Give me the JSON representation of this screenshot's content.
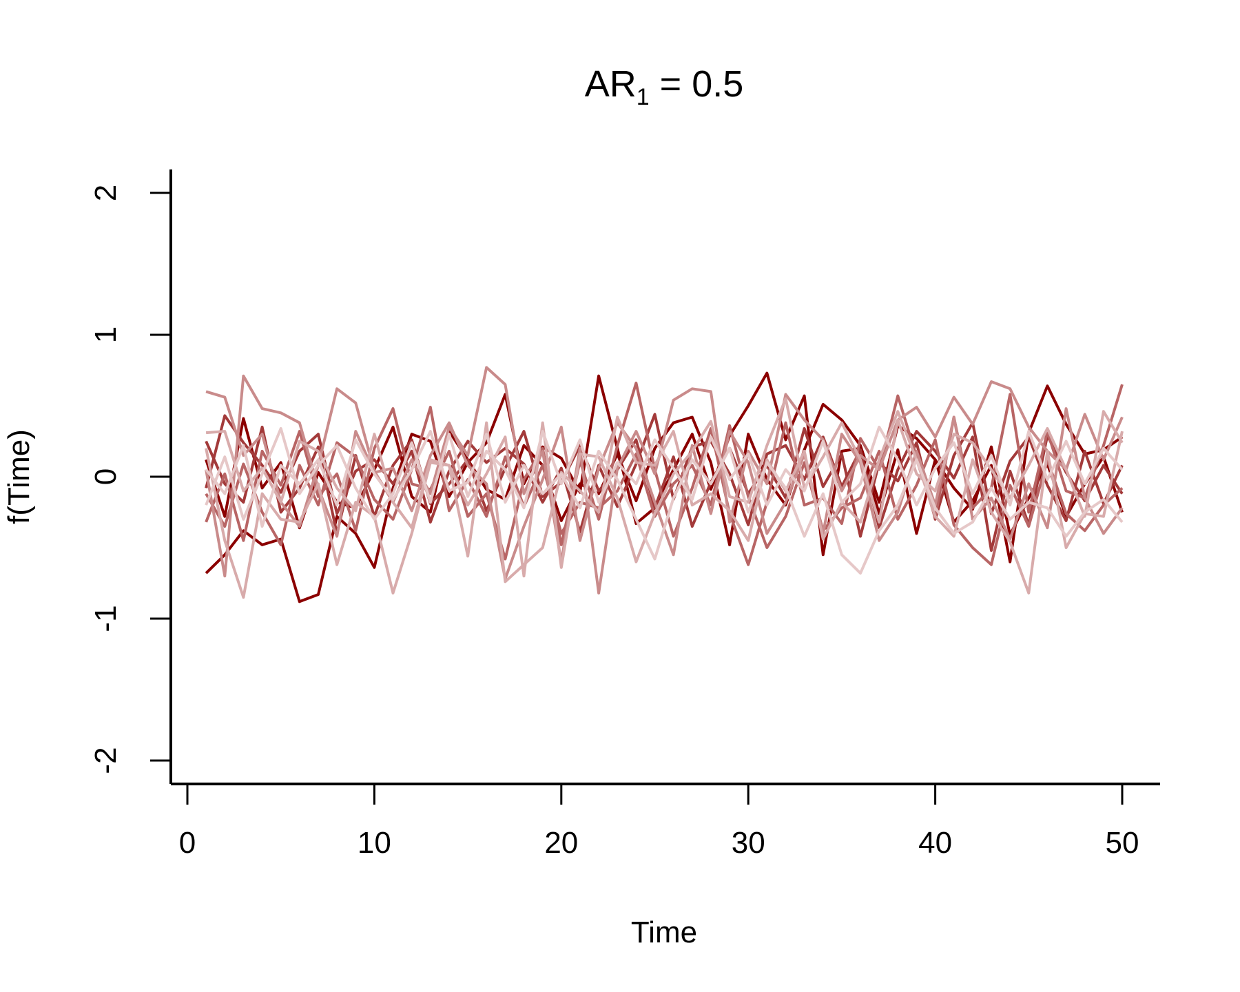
{
  "chart_data": {
    "type": "line",
    "title": {
      "main": "AR",
      "subscript": "1",
      "rest": " = 0.5"
    },
    "xlabel": "Time",
    "ylabel": "f(Time)",
    "xlim": [
      -1,
      52
    ],
    "ylim": [
      -2.15,
      2.15
    ],
    "xticks": [
      "0",
      "10",
      "20",
      "30",
      "40",
      "50"
    ],
    "yticks": [
      "-2",
      "-1",
      "0",
      "1",
      "2"
    ],
    "grid": false,
    "legend": "none",
    "colors": [
      "#8b0000",
      "#a33a3a",
      "#b86565",
      "#c98b8b",
      "#d8abab",
      "#e6c8c8"
    ],
    "series": [
      {
        "color": "#8b0000",
        "values": [
          -0.68,
          -0.55,
          -0.38,
          -0.48,
          -0.44,
          -0.88,
          -0.83,
          -0.28,
          -0.4,
          -0.64,
          -0.08,
          0.3,
          0.25,
          -0.14,
          0.1,
          0.24,
          0.58,
          -0.05,
          0.21,
          0.13,
          -0.11,
          0.71,
          0.2,
          -0.33,
          -0.22,
          0.05,
          0.3,
          -0.09,
          0.29,
          0.5,
          0.73,
          0.26,
          0.57,
          -0.55,
          0.18,
          0.2,
          -0.26,
          0.19,
          -0.4,
          0.12,
          -0.32,
          -0.17,
          0.08,
          -0.6,
          0.31,
          0.64,
          0.37,
          0.16,
          0.19,
          0.28
        ]
      },
      {
        "color": "#8b0000",
        "values": [
          0.12,
          -0.28,
          0.41,
          -0.08,
          0.1,
          -0.36,
          0.03,
          -0.18,
          -0.22,
          0.05,
          0.35,
          -0.14,
          -0.25,
          0.32,
          0.12,
          -0.09,
          -0.16,
          0.22,
          0.08,
          -0.31,
          -0.05,
          -0.12,
          0.16,
          -0.17,
          0.2,
          0.38,
          0.42,
          0.1,
          -0.48,
          0.3,
          -0.02,
          -0.2,
          0.19,
          0.51,
          0.4,
          0.22,
          -0.18,
          0.36,
          0.27,
          0.12,
          -0.08,
          -0.23,
          0.21,
          -0.41,
          -0.15,
          0.09,
          -0.28,
          -0.05,
          0.14,
          -0.25
        ]
      },
      {
        "color": "#a33a3a",
        "values": [
          -0.08,
          0.43,
          0.24,
          0.08,
          -0.11,
          0.18,
          0.3,
          -0.26,
          0.04,
          0.12,
          -0.05,
          0.18,
          -0.32,
          0.04,
          0.25,
          0.1,
          0.2,
          0.09,
          -0.18,
          0.06,
          -0.39,
          0.08,
          -0.21,
          0.09,
          0.44,
          -0.16,
          0.21,
          0.25,
          0.02,
          -0.34,
          0.16,
          0.22,
          -0.02,
          0.28,
          -0.07,
          0.19,
          -0.36,
          0.05,
          0.32,
          0.18,
          -0.01,
          0.28,
          -0.52,
          0.04,
          -0.34,
          0.29,
          0.03,
          -0.17,
          0.08,
          -0.12
        ]
      },
      {
        "color": "#a33a3a",
        "values": [
          0.25,
          -0.05,
          -0.18,
          0.35,
          -0.25,
          -0.08,
          0.21,
          -0.4,
          0.15,
          -0.28,
          0.08,
          0.26,
          -0.19,
          -0.05,
          0.12,
          -0.24,
          0.06,
          0.32,
          -0.14,
          -0.04,
          0.22,
          -0.1,
          0.05,
          0.26,
          -0.22,
          0.14,
          -0.35,
          -0.04,
          0.2,
          -0.12,
          0.08,
          -0.15,
          0.34,
          -0.07,
          0.16,
          -0.42,
          0.1,
          -0.03,
          0.24,
          -0.3,
          0.15,
          0.38,
          -0.26,
          0.11,
          0.28,
          -0.06,
          -0.31,
          0.18,
          -0.19,
          0.08
        ]
      },
      {
        "color": "#b86565",
        "values": [
          -0.32,
          0.02,
          -0.45,
          0.18,
          -0.06,
          0.32,
          -0.14,
          0.02,
          -0.38,
          0.2,
          0.48,
          -0.05,
          -0.09,
          0.18,
          -0.28,
          -0.12,
          -0.58,
          -0.02,
          0.2,
          -0.48,
          0.11,
          -0.3,
          0.22,
          0.66,
          0.05,
          -0.42,
          -0.08,
          0.34,
          -0.26,
          -0.62,
          -0.18,
          0.38,
          -0.2,
          -0.15,
          -0.33,
          0.27,
          0.05,
          0.57,
          0.14,
          -0.29,
          0.42,
          -0.22,
          -0.08,
          0.58,
          -0.25,
          0.32,
          -0.1,
          -0.15,
          0.22,
          0.65
        ]
      },
      {
        "color": "#b86565",
        "values": [
          -0.12,
          -0.35,
          0.09,
          -0.25,
          -0.48,
          0.08,
          -0.2,
          0.24,
          0.14,
          -0.16,
          -0.3,
          0.05,
          0.49,
          -0.24,
          -0.02,
          -0.28,
          0.14,
          -0.21,
          0.08,
          -0.4,
          -0.18,
          -0.22,
          -0.1,
          0.16,
          -0.28,
          -0.05,
          0.08,
          -0.2,
          0.36,
          -0.14,
          -0.5,
          -0.28,
          0.1,
          -0.38,
          -0.22,
          -0.15,
          0.18,
          -0.3,
          -0.06,
          0.26,
          -0.34,
          -0.5,
          -0.62,
          -0.06,
          -0.35,
          0.12,
          -0.26,
          -0.38,
          -0.2,
          -0.08
        ]
      },
      {
        "color": "#c98b8b",
        "values": [
          0.6,
          0.56,
          0.15,
          0.3,
          -0.18,
          -0.35,
          0.08,
          0.62,
          0.52,
          0.04,
          -0.18,
          0.12,
          -0.12,
          0.35,
          0.15,
          0.77,
          0.65,
          -0.12,
          0.18,
          -0.6,
          0.2,
          -0.82,
          0.06,
          0.32,
          0.02,
          0.54,
          0.62,
          0.6,
          -0.32,
          0.18,
          -0.05,
          0.58,
          0.4,
          0.26,
          -0.1,
          0.15,
          0.05,
          0.4,
          0.49,
          0.28,
          0.56,
          0.37,
          0.67,
          0.62,
          0.35,
          0.18,
          0.05,
          0.44,
          0.12,
          0.42
        ]
      },
      {
        "color": "#c98b8b",
        "values": [
          0.05,
          -0.7,
          0.71,
          0.48,
          0.45,
          0.38,
          -0.08,
          -0.42,
          0.32,
          0.03,
          0.06,
          -0.24,
          0.15,
          0.38,
          0.08,
          -0.05,
          -0.72,
          -0.35,
          -0.02,
          0.35,
          -0.45,
          0.06,
          0.38,
          0.2,
          -0.18,
          -0.55,
          0.22,
          -0.26,
          0.32,
          0.1,
          -0.4,
          -0.18,
          0.16,
          -0.4,
          0.3,
          0.1,
          -0.45,
          -0.25,
          0.18,
          -0.2,
          0.42,
          -0.3,
          -0.15,
          -0.44,
          -0.05,
          -0.36,
          0.48,
          -0.15,
          -0.4,
          -0.22
        ]
      },
      {
        "color": "#d8abab",
        "values": [
          0.2,
          -0.45,
          -0.85,
          -0.12,
          -0.3,
          -0.32,
          -0.05,
          -0.62,
          -0.18,
          -0.28,
          -0.82,
          -0.4,
          0.1,
          0.08,
          -0.56,
          0.38,
          -0.74,
          -0.62,
          -0.5,
          0.03,
          -0.1,
          -0.25,
          0.42,
          0.1,
          0.08,
          0.32,
          -0.2,
          -0.12,
          -0.24,
          -0.45,
          0.12,
          -0.1,
          0.18,
          -0.44,
          -0.18,
          -0.32,
          0.12,
          0.46,
          0.12,
          -0.28,
          -0.42,
          0.12,
          -0.25,
          -0.46,
          -0.82,
          0.18,
          -0.5,
          -0.26,
          -0.28,
          0.32
        ]
      },
      {
        "color": "#d8abab",
        "values": [
          0.31,
          0.32,
          -0.1,
          0.06,
          -0.18,
          0.25,
          0.18,
          -0.08,
          -0.24,
          0.3,
          -0.18,
          -0.36,
          0.12,
          0.08,
          -0.2,
          0.02,
          0.28,
          -0.7,
          0.38,
          -0.64,
          0.16,
          0.14,
          -0.15,
          -0.6,
          -0.26,
          0.02,
          0.18,
          0.39,
          -0.14,
          -0.18,
          0.22,
          0.55,
          -0.08,
          0.14,
          0.38,
          0.12,
          -0.32,
          0.4,
          0.02,
          -0.1,
          0.3,
          0.24,
          0.05,
          -0.15,
          0.08,
          0.34,
          0.05,
          -0.28,
          0.46,
          0.24
        ]
      },
      {
        "color": "#e6c8c8",
        "values": [
          -0.2,
          0.14,
          -0.3,
          0.02,
          0.34,
          -0.12,
          0.08,
          0.22,
          -0.08,
          -0.3,
          -0.12,
          0.24,
          -0.18,
          0.3,
          -0.14,
          0.18,
          0.05,
          -0.22,
          0.32,
          -0.05,
          0.26,
          -0.18,
          0.1,
          -0.05,
          0.26,
          0.06,
          -0.16,
          0.28,
          -0.02,
          0.16,
          -0.2,
          0.05,
          -0.1,
          0.25,
          -0.18,
          -0.05,
          0.35,
          0.12,
          -0.2,
          0.06,
          0.24,
          -0.12,
          0.15,
          -0.2,
          0.32,
          -0.02,
          0.25,
          -0.05,
          0.2,
          0.05
        ]
      },
      {
        "color": "#e6c8c8",
        "values": [
          0.05,
          -0.12,
          0.22,
          -0.35,
          0.08,
          -0.05,
          0.12,
          -0.2,
          0.26,
          0.02,
          -0.16,
          0.05,
          0.32,
          -0.1,
          -0.04,
          0.3,
          -0.18,
          0.08,
          -0.12,
          0.02,
          -0.22,
          0.18,
          -0.02,
          -0.3,
          -0.58,
          -0.15,
          0.12,
          -0.05,
          0.2,
          -0.25,
          0.1,
          -0.08,
          -0.42,
          -0.12,
          -0.55,
          -0.68,
          -0.38,
          -0.2,
          0.12,
          -0.22,
          -0.4,
          -0.32,
          -0.08,
          -0.3,
          -0.18,
          -0.22,
          -0.42,
          -0.25,
          -0.16,
          -0.32
        ]
      }
    ]
  }
}
